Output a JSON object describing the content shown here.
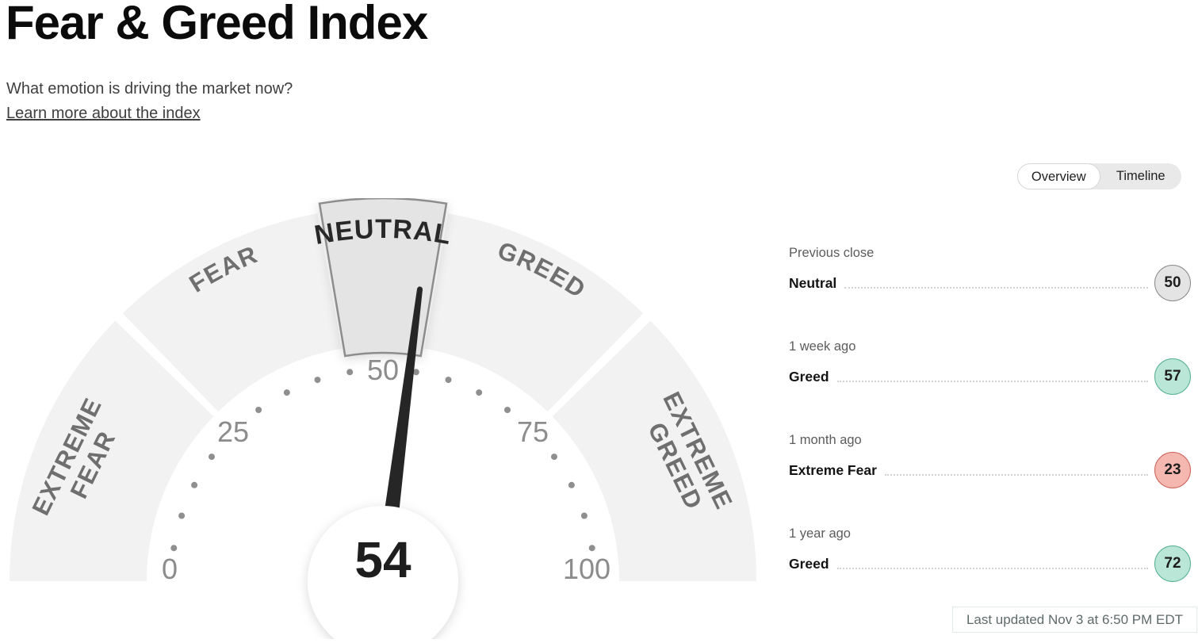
{
  "header": {
    "title": "Fear & Greed Index",
    "subtitle": "What emotion is driving the market now?",
    "learn_more_link": "Learn more about the index"
  },
  "view_toggle": {
    "options": [
      "Overview",
      "Timeline"
    ],
    "selected": "Overview"
  },
  "chart_data": {
    "type": "gauge",
    "title": "Fear & Greed Index",
    "value": 54,
    "current_zone": "Neutral",
    "min": 0,
    "max": 100,
    "axis_ticks": [
      0,
      25,
      50,
      75,
      100
    ],
    "minor_tick_step": 5,
    "segments": [
      {
        "label": "EXTREME FEAR",
        "lines": [
          "EXTREME",
          "FEAR"
        ],
        "range": [
          0,
          25
        ],
        "highlighted": false
      },
      {
        "label": "FEAR",
        "lines": [
          "FEAR"
        ],
        "range": [
          25,
          45
        ],
        "highlighted": false
      },
      {
        "label": "NEUTRAL",
        "lines": [
          "NEUTRAL"
        ],
        "range": [
          45,
          55
        ],
        "highlighted": true
      },
      {
        "label": "GREED",
        "lines": [
          "GREED"
        ],
        "range": [
          55,
          75
        ],
        "highlighted": false
      },
      {
        "label": "EXTREME GREED",
        "lines": [
          "EXTREME",
          "GREED"
        ],
        "range": [
          75,
          100
        ],
        "highlighted": false
      }
    ],
    "history": [
      {
        "period": "Previous close",
        "label": "Neutral",
        "value": 50,
        "badge_color": "#e4e4e4",
        "badge_border": "#8a8a8a"
      },
      {
        "period": "1 week ago",
        "label": "Greed",
        "value": 57,
        "badge_color": "#b9e6d6",
        "badge_border": "#56b193"
      },
      {
        "period": "1 month ago",
        "label": "Extreme Fear",
        "value": 23,
        "badge_color": "#f5b8b1",
        "badge_border": "#cb6159"
      },
      {
        "period": "1 year ago",
        "label": "Greed",
        "value": 72,
        "badge_color": "#b9e6d6",
        "badge_border": "#56b193"
      }
    ]
  },
  "footer": {
    "last_updated": "Last updated Nov 3 at 6:50 PM EDT"
  },
  "colors": {
    "segment_fill": "#f2f2f2",
    "highlight_fill": "#e4e4e4",
    "highlight_stroke": "#8d8d8d",
    "needle": "#262626",
    "tick_text": "#8c8c8c",
    "badge_neutral": "#e4e4e4",
    "badge_greed": "#b9e6d6",
    "badge_fear": "#f5b8b1"
  }
}
